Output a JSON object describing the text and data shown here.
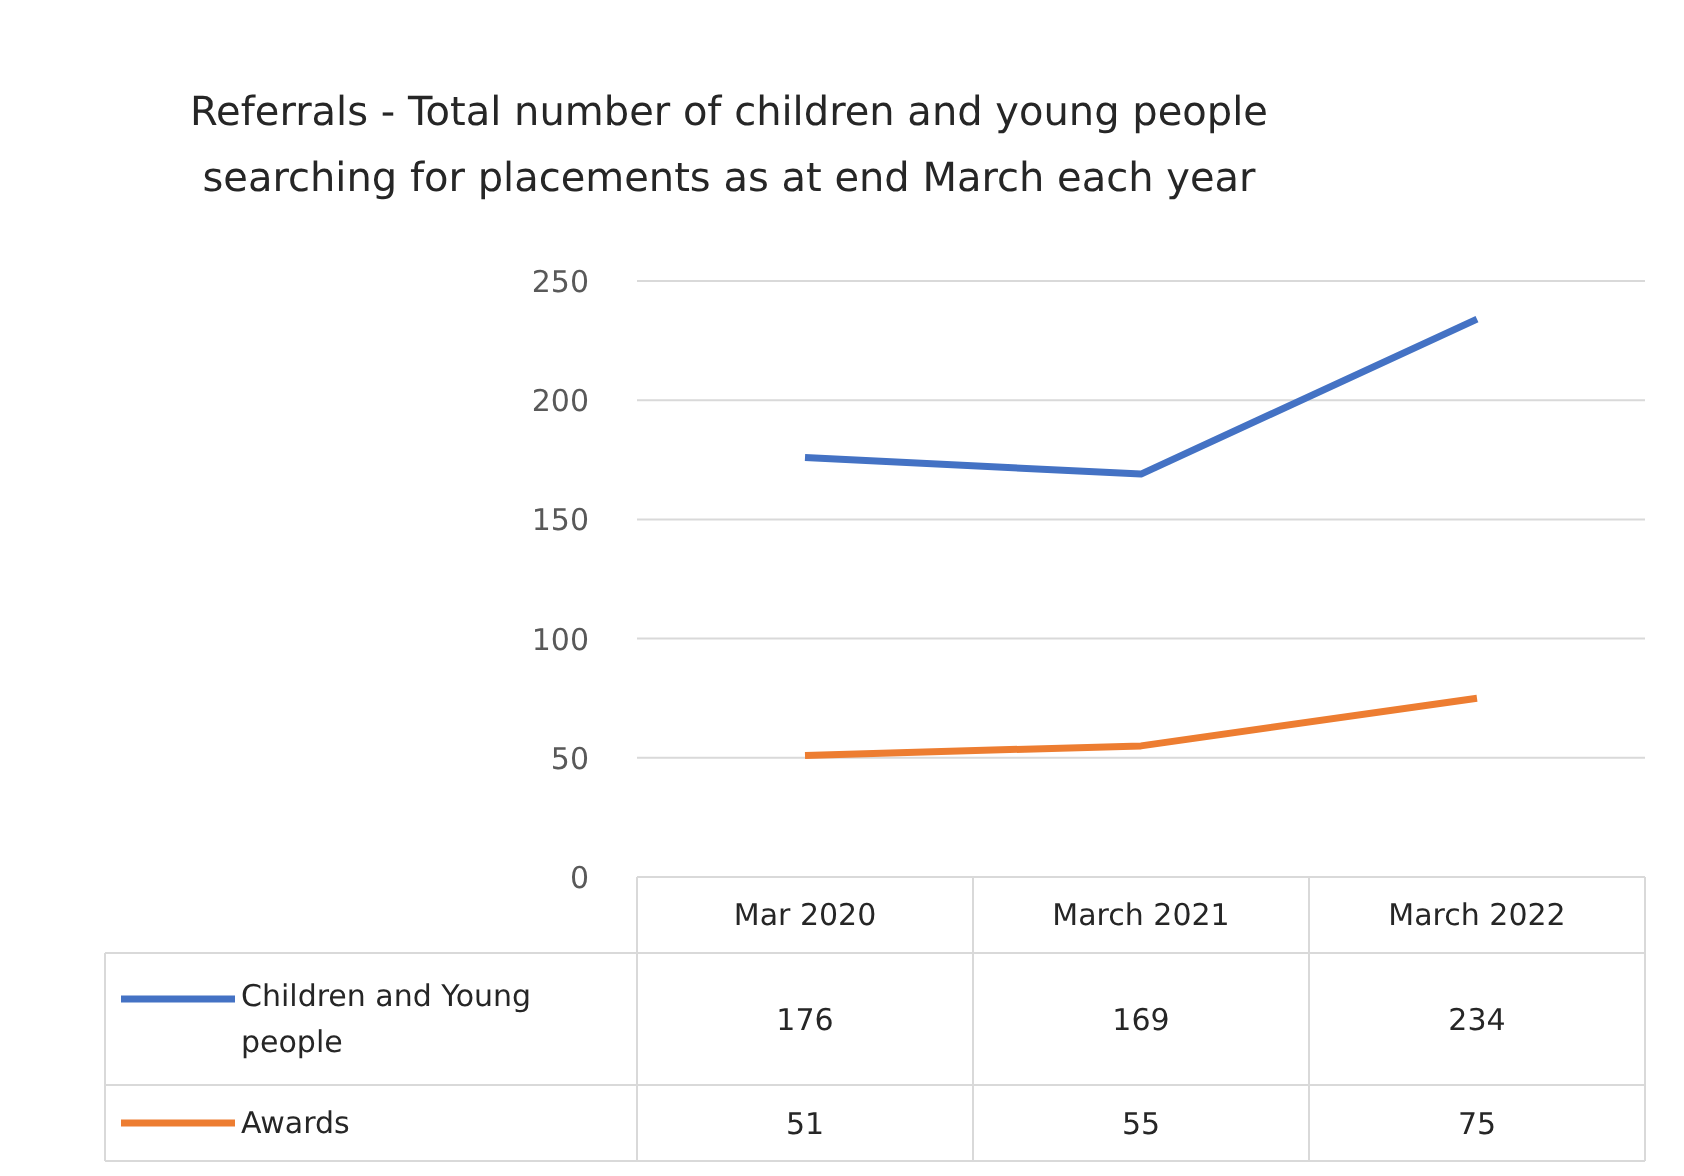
{
  "chart_data": {
    "type": "line",
    "title": "Referrals - Total number of children and young people searching for placements as at end March each year",
    "categories": [
      "Mar 2020",
      "March 2021",
      "March 2022"
    ],
    "series": [
      {
        "name": "Children and Young people",
        "color": "#4472c4",
        "values": [
          176,
          169,
          234
        ]
      },
      {
        "name": "Awards",
        "color": "#ed7d31",
        "values": [
          51,
          55,
          75
        ]
      }
    ],
    "ylim": [
      0,
      250
    ],
    "yticks": [
      0,
      50,
      100,
      150,
      200,
      250
    ],
    "grid": "y",
    "legend": "bottom",
    "data_labels": true
  }
}
